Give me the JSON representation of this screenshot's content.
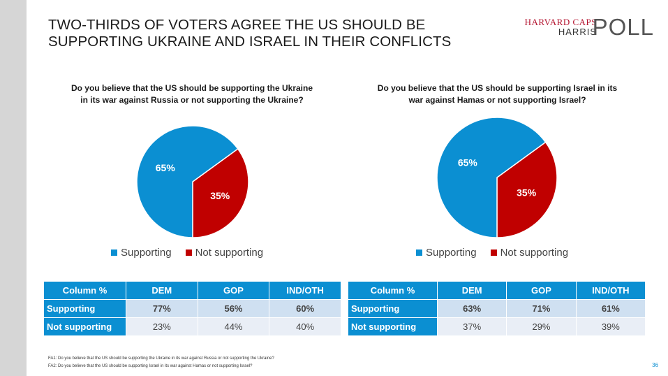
{
  "title": "TWO-THIRDS OF VOTERS AGREE THE US SHOULD BE SUPPORTING UKRAINE AND ISRAEL IN THEIR CONFLICTS",
  "logo": {
    "line1": "HARVARD CAPS",
    "line2": "HARRIS",
    "poll": "POLL"
  },
  "colors": {
    "supporting": "#0b8fd2",
    "not_supporting": "#c00000"
  },
  "chart_data": [
    {
      "type": "pie",
      "title": "Do you believe that the US should be supporting the Ukraine in its war against Russia or not supporting the Ukraine?",
      "categories": [
        "Supporting",
        "Not supporting"
      ],
      "values": [
        65,
        35
      ],
      "labels": [
        "65%",
        "35%"
      ],
      "legend": "bottom"
    },
    {
      "type": "pie",
      "title": "Do you believe that the US should be supporting Israel in its war against Hamas or not supporting Israel?",
      "categories": [
        "Supporting",
        "Not supporting"
      ],
      "values": [
        65,
        35
      ],
      "labels": [
        "65%",
        "35%"
      ],
      "legend": "bottom"
    }
  ],
  "tables": [
    {
      "headers": [
        "Column %",
        "DEM",
        "GOP",
        "IND/OTH"
      ],
      "rows": [
        [
          "Supporting",
          "77%",
          "56%",
          "60%"
        ],
        [
          "Not supporting",
          "23%",
          "44%",
          "40%"
        ]
      ]
    },
    {
      "headers": [
        "Column %",
        "DEM",
        "GOP",
        "IND/OTH"
      ],
      "rows": [
        [
          "Supporting",
          "63%",
          "71%",
          "61%"
        ],
        [
          "Not supporting",
          "37%",
          "29%",
          "39%"
        ]
      ]
    }
  ],
  "footnotes": [
    "FA1: Do you believe that the US should be supporting the Ukraine in its war against Russia or not supporting the Ukraine?",
    "FA2: Do you believe that the US should be supporting Israel in its war against Hamas or not supporting Israel?"
  ],
  "page_number": "36"
}
